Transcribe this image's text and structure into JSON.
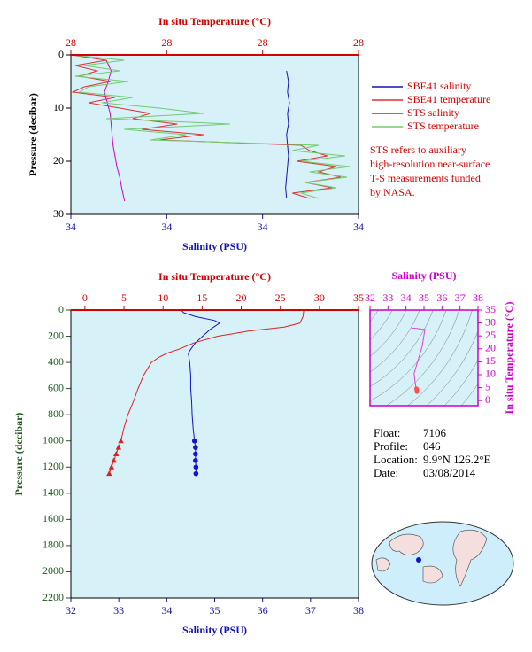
{
  "chart_data": [
    {
      "type": "profile",
      "x2label": "In situ Temperature (°C)",
      "xlabel": "Salinity (PSU)",
      "ylabel": "Pressure (decibar)",
      "xlim": [
        33.9,
        34.2
      ],
      "xticks": [
        {
          "value": 33.9,
          "label": "34"
        },
        {
          "value": 34.0,
          "label": "34"
        },
        {
          "value": 34.1,
          "label": "34"
        },
        {
          "value": 34.2,
          "label": "34"
        }
      ],
      "x2lim": [
        27.8,
        28.4
      ],
      "x2ticks": [
        {
          "value": 27.8,
          "label": "28"
        },
        {
          "value": 28.0,
          "label": "28"
        },
        {
          "value": 28.2,
          "label": "28"
        },
        {
          "value": 28.4,
          "label": "28"
        }
      ],
      "ylim": [
        0,
        30
      ],
      "yticks": [
        0,
        10,
        20,
        30
      ],
      "y_reversed": true,
      "background": "#d6f1f8",
      "axis_colors": {
        "x": "#1414b4",
        "x2": "#d40000",
        "y": "#000000"
      },
      "legend": "right",
      "legend_text_color": "#d40000",
      "series": [
        {
          "name": "SBE41 salinity",
          "color": "#1414b4",
          "axis": "x",
          "pressure": [
            3,
            5,
            7,
            9,
            11,
            13,
            15,
            17,
            19,
            21,
            23,
            25,
            27
          ],
          "values": [
            34.125,
            34.127,
            34.126,
            34.128,
            34.126,
            34.127,
            34.125,
            34.126,
            34.127,
            34.126,
            34.125,
            34.124,
            34.125
          ]
        },
        {
          "name": "SBE41 temperature",
          "color": "#e03030",
          "axis": "x2",
          "pressure": [
            0,
            1,
            2,
            3,
            4,
            5,
            6,
            7,
            8,
            9,
            10,
            11,
            12,
            13,
            14,
            15,
            16,
            17,
            18,
            19,
            20,
            21,
            22,
            23,
            24,
            25,
            26,
            27
          ],
          "values": [
            27.8,
            27.874,
            27.809,
            27.855,
            27.818,
            27.883,
            27.828,
            27.804,
            27.892,
            27.837,
            27.902,
            27.966,
            27.929,
            28.022,
            27.948,
            28.077,
            27.985,
            28.28,
            28.298,
            28.335,
            28.271,
            28.354,
            28.317,
            28.363,
            28.289,
            28.345,
            28.262,
            28.298
          ]
        },
        {
          "name": "STS salinity",
          "color": "#d000d0",
          "axis": "x",
          "pressure": [
            1,
            3,
            5,
            7,
            9,
            11,
            13,
            15,
            17,
            19,
            21,
            23,
            25,
            27.5
          ],
          "values": [
            33.937,
            33.942,
            33.939,
            33.935,
            33.938,
            33.941,
            33.942,
            33.943,
            33.944,
            33.946,
            33.948,
            33.951,
            33.953,
            33.956
          ]
        },
        {
          "name": "STS temperature",
          "color": "#70cc70",
          "axis": "x2",
          "pressure": [
            0,
            1,
            2,
            3,
            4,
            5,
            6,
            7,
            8,
            9,
            10,
            11,
            12,
            13,
            14,
            15,
            16,
            17,
            18,
            19,
            20,
            21,
            22,
            23,
            24,
            25,
            26,
            27
          ],
          "values": [
            27.8,
            27.911,
            27.828,
            27.902,
            27.809,
            27.92,
            27.837,
            27.818,
            27.929,
            27.865,
            27.985,
            28.077,
            27.874,
            28.132,
            27.911,
            28.04,
            27.966,
            28.317,
            28.262,
            28.372,
            28.28,
            28.382,
            28.298,
            28.376,
            28.289,
            28.354,
            28.28,
            28.317
          ]
        }
      ],
      "note_color": "#d40000",
      "note": [
        "STS refers to auxiliary",
        "high-resolution near-surface",
        "T-S measurements funded",
        "by NASA."
      ]
    },
    {
      "type": "profile",
      "x2label": "In situ Temperature (°C)",
      "xlabel": "Salinity (PSU)",
      "ylabel": "Pressure (decibar)",
      "xlim": [
        32,
        38
      ],
      "xticks": [
        32,
        33,
        34,
        35,
        36,
        37,
        38
      ],
      "x2lim": [
        -1.8,
        35
      ],
      "x2ticks": [
        0,
        5,
        10,
        15,
        20,
        25,
        30,
        35
      ],
      "ylim": [
        0,
        2200
      ],
      "yticks": [
        0,
        200,
        400,
        600,
        800,
        1000,
        1200,
        1400,
        1600,
        1800,
        2000,
        2200
      ],
      "y_reversed": true,
      "background": "#d6f1f8",
      "axis_colors": {
        "x": "#1414b4",
        "x2": "#d40000",
        "y": "#1e5a1e"
      },
      "series": [
        {
          "color": "#1414d0",
          "axis": "x",
          "marker": "circle",
          "pressure": [
            0,
            20,
            50,
            80,
            100,
            150,
            200,
            250,
            300,
            330,
            400,
            500,
            600,
            700,
            800,
            900,
            1000,
            1050,
            1100,
            1150,
            1200,
            1250
          ],
          "values": [
            34.3,
            34.35,
            34.6,
            35.0,
            35.1,
            34.9,
            34.75,
            34.6,
            34.5,
            34.45,
            34.48,
            34.5,
            34.5,
            34.52,
            34.53,
            34.55,
            34.58,
            34.6,
            34.6,
            34.6,
            34.61,
            34.61
          ],
          "point_pressure": [
            1000,
            1050,
            1100,
            1150,
            1200,
            1250
          ],
          "point_values": [
            34.58,
            34.6,
            34.6,
            34.6,
            34.61,
            34.61
          ]
        },
        {
          "color": "#e02020",
          "axis": "x2",
          "marker": "triangle",
          "pressure": [
            0,
            50,
            100,
            130,
            160,
            200,
            250,
            300,
            330,
            360,
            400,
            500,
            600,
            700,
            800,
            900,
            1000,
            1050,
            1100,
            1150,
            1200,
            1250
          ],
          "values": [
            28.0,
            27.9,
            27.5,
            25.5,
            21,
            17,
            14,
            12,
            10.5,
            9.5,
            8.5,
            7.5,
            6.8,
            6.2,
            5.5,
            5.0,
            4.6,
            4.3,
            4.0,
            3.7,
            3.4,
            3.1
          ],
          "point_pressure": [
            1000,
            1050,
            1100,
            1150,
            1200,
            1250
          ],
          "point_values": [
            4.6,
            4.3,
            4.0,
            3.7,
            3.4,
            3.1
          ]
        }
      ]
    },
    {
      "type": "ts",
      "xlabel": "Salinity (PSU)",
      "ylabel": "In situ Temperature (°C)",
      "xlim": [
        32,
        38
      ],
      "xticks": [
        32,
        33,
        34,
        35,
        36,
        37,
        38
      ],
      "ylim": [
        -2,
        35
      ],
      "yticks": [
        0,
        5,
        10,
        15,
        20,
        25,
        30,
        35
      ],
      "background": "#d6f1f8",
      "axis_colors": {
        "x": "#cc00cc",
        "y": "#cc00cc"
      },
      "series": [
        {
          "color": "#e040e0",
          "salinity": [
            34.3,
            34.6,
            35.05,
            34.9,
            34.6,
            34.45,
            34.5,
            34.55
          ],
          "temperature": [
            28,
            27.9,
            27.5,
            21,
            14,
            10.5,
            7.5,
            5
          ]
        },
        {
          "color": "#ff5050",
          "point_salinity": [
            34.58,
            34.6,
            34.6,
            34.61,
            34.61
          ],
          "point_temperature": [
            4.6,
            4.3,
            4.0,
            3.7,
            3.4
          ]
        }
      ]
    }
  ],
  "float_info": [
    {
      "label": "Float:",
      "value": "7106"
    },
    {
      "label": "Profile:",
      "value": "046"
    },
    {
      "label": "Location:",
      "value": "9.9°N  126.2°E"
    },
    {
      "label": "Date:",
      "value": "03/08/2014"
    }
  ]
}
